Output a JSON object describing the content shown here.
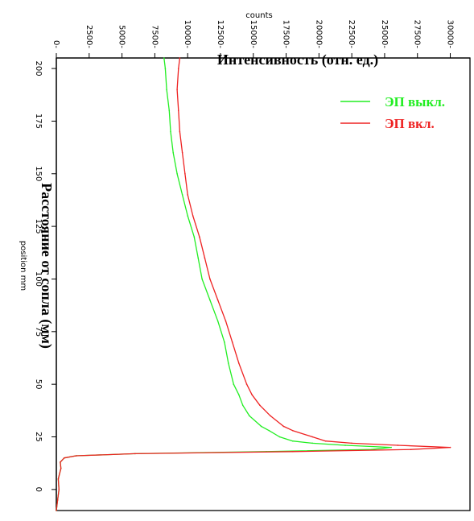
{
  "chart_data": {
    "type": "line",
    "x_label_raw": "position mm",
    "y_label_raw": "counts",
    "x_label": "Расстояние от сопла (мм)",
    "y_label": "Интенсивность (отн. ед.)",
    "xlim": [
      -10,
      205
    ],
    "ylim": [
      0,
      31500
    ],
    "x_ticks": [
      0,
      25,
      50,
      75,
      100,
      125,
      150,
      175,
      200
    ],
    "y_ticks": [
      0,
      2500,
      5000,
      7500,
      10000,
      12500,
      15000,
      17500,
      20000,
      22500,
      25000,
      27500,
      30000
    ],
    "x_tick_labels": [
      "0",
      "25",
      "50",
      "75",
      "100",
      "125",
      "150",
      "175",
      "200"
    ],
    "y_tick_labels": [
      "0",
      "2500",
      "5000",
      "7500",
      "10000",
      "12500",
      "15000",
      "17500",
      "20000",
      "22500",
      "25000",
      "27500",
      "30000"
    ],
    "series": [
      {
        "name": "ЭП выкл.",
        "color": "#22ee22",
        "points": [
          [
            -10,
            0
          ],
          [
            -5,
            100
          ],
          [
            0,
            200
          ],
          [
            5,
            150
          ],
          [
            10,
            350
          ],
          [
            13,
            300
          ],
          [
            15,
            600
          ],
          [
            16,
            1500
          ],
          [
            17,
            6000
          ],
          [
            18,
            16000
          ],
          [
            19,
            24000
          ],
          [
            20,
            25500
          ],
          [
            21,
            22000
          ],
          [
            22,
            19500
          ],
          [
            23,
            18000
          ],
          [
            25,
            17000
          ],
          [
            28,
            16200
          ],
          [
            30,
            15600
          ],
          [
            35,
            14700
          ],
          [
            40,
            14200
          ],
          [
            45,
            13900
          ],
          [
            50,
            13500
          ],
          [
            60,
            13100
          ],
          [
            70,
            12800
          ],
          [
            80,
            12300
          ],
          [
            90,
            11700
          ],
          [
            100,
            11100
          ],
          [
            110,
            10800
          ],
          [
            120,
            10500
          ],
          [
            130,
            10000
          ],
          [
            140,
            9600
          ],
          [
            150,
            9200
          ],
          [
            160,
            8900
          ],
          [
            170,
            8700
          ],
          [
            180,
            8600
          ],
          [
            190,
            8400
          ],
          [
            200,
            8300
          ],
          [
            205,
            8200
          ]
        ]
      },
      {
        "name": "ЭП вкл.",
        "color": "#ee2222",
        "points": [
          [
            -10,
            0
          ],
          [
            -5,
            100
          ],
          [
            0,
            200
          ],
          [
            5,
            150
          ],
          [
            10,
            350
          ],
          [
            13,
            300
          ],
          [
            15,
            600
          ],
          [
            16,
            1500
          ],
          [
            17,
            6000
          ],
          [
            18,
            18000
          ],
          [
            19,
            27000
          ],
          [
            20,
            30000
          ],
          [
            21,
            26000
          ],
          [
            22,
            22500
          ],
          [
            23,
            20500
          ],
          [
            25,
            19500
          ],
          [
            28,
            18000
          ],
          [
            30,
            17300
          ],
          [
            35,
            16300
          ],
          [
            40,
            15500
          ],
          [
            45,
            14900
          ],
          [
            50,
            14500
          ],
          [
            60,
            13900
          ],
          [
            70,
            13400
          ],
          [
            80,
            12900
          ],
          [
            90,
            12300
          ],
          [
            100,
            11700
          ],
          [
            110,
            11300
          ],
          [
            120,
            10900
          ],
          [
            130,
            10400
          ],
          [
            140,
            10000
          ],
          [
            150,
            9800
          ],
          [
            160,
            9600
          ],
          [
            170,
            9400
          ],
          [
            180,
            9300
          ],
          [
            190,
            9200
          ],
          [
            200,
            9300
          ],
          [
            205,
            9400
          ]
        ]
      }
    ],
    "legend_position": "top-right"
  }
}
